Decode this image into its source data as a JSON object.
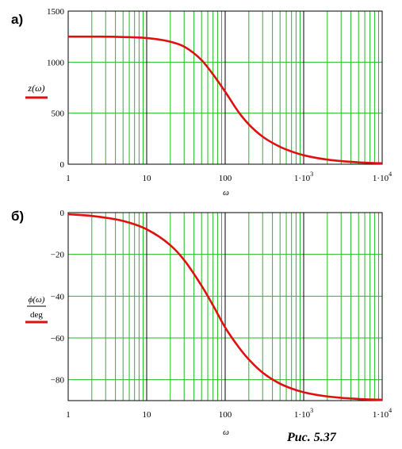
{
  "figure": {
    "caption": "Рис. 5.37"
  },
  "colors": {
    "grid": "#22bb22",
    "curve": "#e01010",
    "major_grid": "#000000",
    "frame": "#000000"
  },
  "chart_data": [
    {
      "type": "line",
      "panel_label": "а)",
      "title": "",
      "xlabel": "ω",
      "ylabel": "z(ω)",
      "xscale": "log",
      "xlim": [
        1,
        10000
      ],
      "ylim": [
        0,
        1500
      ],
      "grid": true,
      "x_ticks": [
        1,
        10,
        100,
        1000,
        10000
      ],
      "x_tick_labels": [
        {
          "text": "1",
          "sup": ""
        },
        {
          "text": "10",
          "sup": ""
        },
        {
          "text": "100",
          "sup": ""
        },
        {
          "text": "1·10",
          "sup": "3"
        },
        {
          "text": "1·10",
          "sup": "4"
        }
      ],
      "y_ticks": [
        0,
        500,
        1000,
        1500
      ],
      "y_tick_labels": [
        "0",
        "500",
        "1000",
        "1500"
      ],
      "series": [
        {
          "x": [
            1,
            2,
            5,
            10,
            20,
            30,
            50,
            70,
            100,
            150,
            200,
            300,
            500,
            700,
            1000,
            2000,
            5000,
            10000
          ],
          "y": [
            1250,
            1250,
            1246,
            1236,
            1200,
            1152,
            1020,
            880,
            710,
            505,
            390,
            270,
            170,
            125,
            88,
            45,
            18,
            9
          ]
        }
      ]
    },
    {
      "type": "line",
      "panel_label": "б)",
      "title": "",
      "xlabel": "ω",
      "ylabel_num": "ϕ(ω)",
      "ylabel_den": "deg",
      "xscale": "log",
      "xlim": [
        1,
        10000
      ],
      "ylim": [
        -90,
        0
      ],
      "grid": true,
      "x_ticks": [
        1,
        10,
        100,
        1000,
        10000
      ],
      "x_tick_labels": [
        {
          "text": "1",
          "sup": ""
        },
        {
          "text": "10",
          "sup": ""
        },
        {
          "text": "100",
          "sup": ""
        },
        {
          "text": "1·10",
          "sup": "3"
        },
        {
          "text": "1·10",
          "sup": "4"
        }
      ],
      "y_ticks": [
        0,
        -20,
        -40,
        -60,
        -80
      ],
      "y_tick_labels": [
        "0",
        "−20",
        "−40",
        "−60",
        "−80"
      ],
      "series": [
        {
          "x": [
            1,
            2,
            5,
            10,
            20,
            30,
            50,
            70,
            100,
            150,
            200,
            300,
            500,
            700,
            1000,
            2000,
            5000,
            10000
          ],
          "y": [
            -0.8,
            -1.6,
            -4.0,
            -8.0,
            -15.6,
            -22.7,
            -35.0,
            -44.4,
            -55.0,
            -64.6,
            -70.3,
            -76.6,
            -81.9,
            -84.2,
            -86.0,
            -88.0,
            -89.2,
            -89.6
          ]
        }
      ]
    }
  ]
}
